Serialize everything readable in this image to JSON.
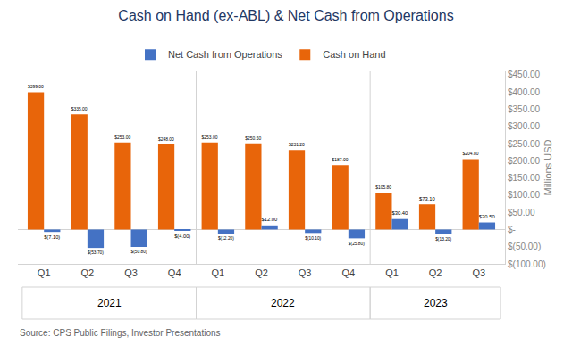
{
  "chart_data": {
    "type": "bar",
    "title": "Cash on Hand (ex-ABL) & Net Cash from Operations",
    "categories": [
      "Q1",
      "Q2",
      "Q3",
      "Q4",
      "Q1",
      "Q2",
      "Q3",
      "Q4",
      "Q1",
      "Q2",
      "Q3"
    ],
    "category_groups": [
      {
        "label": "2021",
        "count": 4
      },
      {
        "label": "2022",
        "count": 4
      },
      {
        "label": "2023",
        "count": 3
      }
    ],
    "series": [
      {
        "name": "Cash on Hand",
        "color": "#E8650A",
        "values": [
          399.0,
          335.0,
          253.0,
          248.0,
          253.0,
          250.5,
          231.2,
          187.0,
          105.8,
          73.1,
          204.8
        ],
        "value_labels": [
          "$399.00",
          "$335.00",
          "$253.00",
          "$248.00",
          "$253.00",
          "$250.50",
          "$231.20",
          "$187.00",
          "$105.80",
          "$73.10",
          "$204.80"
        ]
      },
      {
        "name": "Net Cash from Operations",
        "color": "#4472C4",
        "values": [
          -7.1,
          -53.7,
          -50.8,
          -4.0,
          -12.2,
          12.0,
          -10.1,
          -25.8,
          30.4,
          -13.2,
          20.5
        ],
        "value_labels": [
          "$(7.10)",
          "$(53.70)",
          "$(50.80)",
          "$(4.00)",
          "$(12.20)",
          "$12.00",
          "$(10.10)",
          "$(25.80)",
          "$30.40",
          "$(13.20)",
          "$20.50"
        ]
      }
    ],
    "legend_order": [
      "Net Cash from Operations",
      "Cash on Hand"
    ],
    "y_label": "Millions USD",
    "ylim": [
      -100,
      460
    ],
    "yticks": [
      {
        "value": 450,
        "label": "$450.00"
      },
      {
        "value": 400,
        "label": "$400.00"
      },
      {
        "value": 350,
        "label": "$350.00"
      },
      {
        "value": 300,
        "label": "$300.00"
      },
      {
        "value": 250,
        "label": "$250.00"
      },
      {
        "value": 200,
        "label": "$200.00"
      },
      {
        "value": 150,
        "label": "$150.00"
      },
      {
        "value": 100,
        "label": "$100.00"
      },
      {
        "value": 50,
        "label": "$50.00"
      },
      {
        "value": 0,
        "label": "$-"
      },
      {
        "value": -50,
        "label": "$(50.00)"
      },
      {
        "value": -100,
        "label": "$(100.00)"
      }
    ],
    "annotations": [
      "Source: CPS Public Filings, Investor Presentations"
    ],
    "data_labels": true,
    "grid": false,
    "legend": "top"
  }
}
